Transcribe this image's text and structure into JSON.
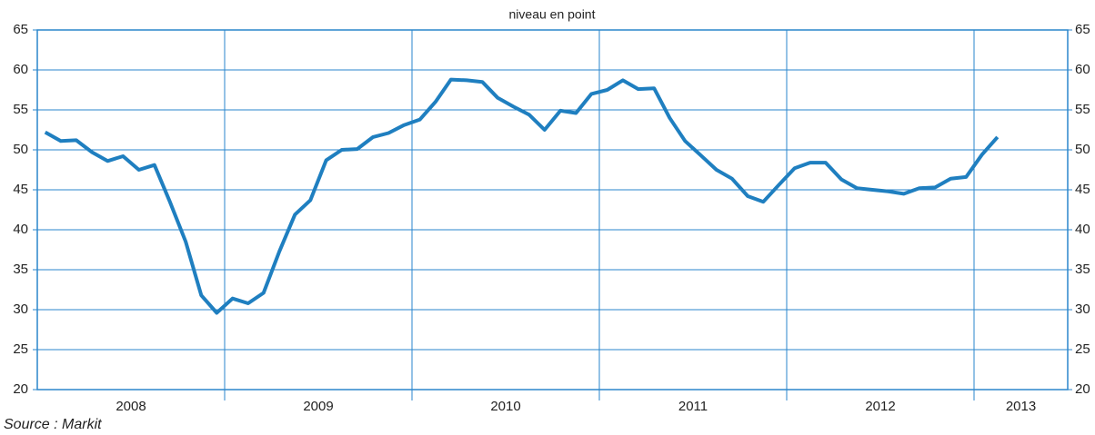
{
  "chart_data": {
    "type": "line",
    "title": "niveau en point",
    "source": "Source : Markit",
    "x": [
      2008.042,
      2008.125,
      2008.208,
      2008.292,
      2008.375,
      2008.458,
      2008.542,
      2008.625,
      2008.708,
      2008.792,
      2008.875,
      2008.958,
      2009.042,
      2009.125,
      2009.208,
      2009.292,
      2009.375,
      2009.458,
      2009.542,
      2009.625,
      2009.708,
      2009.792,
      2009.875,
      2009.958,
      2010.042,
      2010.125,
      2010.208,
      2010.292,
      2010.375,
      2010.458,
      2010.542,
      2010.625,
      2010.708,
      2010.792,
      2010.875,
      2010.958,
      2011.042,
      2011.125,
      2011.208,
      2011.292,
      2011.375,
      2011.458,
      2011.542,
      2011.625,
      2011.708,
      2011.792,
      2011.875,
      2011.958,
      2012.042,
      2012.125,
      2012.208,
      2012.292,
      2012.375,
      2012.458,
      2012.542,
      2012.625,
      2012.708,
      2012.792,
      2012.875,
      2012.958,
      2013.042,
      2013.125
    ],
    "series": [
      {
        "color": "#1f7fc0",
        "values": [
          52.2,
          51.1,
          51.2,
          49.7,
          48.6,
          49.2,
          47.5,
          48.1,
          43.5,
          38.5,
          31.8,
          29.6,
          31.4,
          30.8,
          32.1,
          37.3,
          41.9,
          43.7,
          48.7,
          50.0,
          50.1,
          51.6,
          52.1,
          53.1,
          53.8,
          56.0,
          58.8,
          58.7,
          58.5,
          56.5,
          55.4,
          54.4,
          52.5,
          54.9,
          54.6,
          57.0,
          57.5,
          58.7,
          57.6,
          57.7,
          54.0,
          51.1,
          49.3,
          47.5,
          46.4,
          44.2,
          43.5,
          45.6,
          47.7,
          48.4,
          48.4,
          46.3,
          45.2,
          45.0,
          44.8,
          44.5,
          45.2,
          45.3,
          46.4,
          46.6,
          49.4,
          51.6
        ]
      }
    ],
    "xlim": [
      2008,
      2013.5
    ],
    "xticks": [
      2009,
      2010,
      2011,
      2012,
      2013
    ],
    "year_labels": [
      {
        "value": 2008.5,
        "label": "2008"
      },
      {
        "value": 2009.5,
        "label": "2009"
      },
      {
        "value": 2010.5,
        "label": "2010"
      },
      {
        "value": 2011.5,
        "label": "2011"
      },
      {
        "value": 2012.5,
        "label": "2012"
      },
      {
        "value": 2013.25,
        "label": "2013"
      }
    ],
    "ylim": [
      20,
      65
    ],
    "yticks": [
      20,
      25,
      30,
      35,
      40,
      45,
      50,
      55,
      60,
      65
    ],
    "grid": true
  }
}
